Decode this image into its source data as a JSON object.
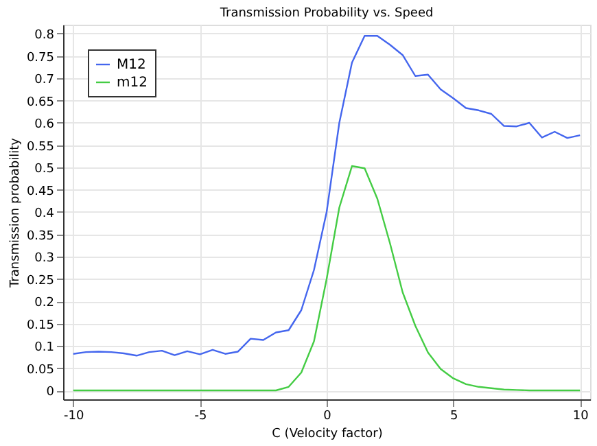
{
  "chart_data": {
    "type": "line",
    "title": "Transmission Probability vs. Speed",
    "xlabel": "C (Velocity factor)",
    "ylabel": "Transmission probability",
    "x": [
      -10,
      -9.5,
      -9,
      -8.5,
      -8,
      -7.5,
      -7,
      -6.5,
      -6,
      -5.5,
      -5,
      -4.5,
      -4,
      -3.5,
      -3,
      -2.5,
      -2,
      -1.5,
      -1,
      -0.5,
      0,
      0.5,
      1,
      1.5,
      2,
      2.5,
      3,
      3.5,
      4,
      4.5,
      5,
      5.5,
      6,
      6.5,
      7,
      7.5,
      8,
      8.5,
      9,
      9.5,
      10
    ],
    "series": [
      {
        "name": "M12",
        "color": "#4466ee",
        "values": [
          0.082,
          0.086,
          0.087,
          0.086,
          0.083,
          0.078,
          0.086,
          0.089,
          0.079,
          0.088,
          0.081,
          0.091,
          0.082,
          0.087,
          0.116,
          0.113,
          0.13,
          0.135,
          0.18,
          0.27,
          0.4,
          0.6,
          0.735,
          0.795,
          0.795,
          0.775,
          0.752,
          0.705,
          0.708,
          0.675,
          0.655,
          0.633,
          0.628,
          0.62,
          0.593,
          0.592,
          0.6,
          0.567,
          0.58,
          0.566,
          0.572
        ]
      },
      {
        "name": "m12",
        "color": "#44cc44",
        "values": [
          0,
          0,
          0,
          0,
          0,
          0,
          0,
          0,
          0,
          0,
          0,
          0,
          0,
          0,
          0,
          0,
          0,
          0.008,
          0.04,
          0.11,
          0.25,
          0.41,
          0.503,
          0.498,
          0.43,
          0.33,
          0.22,
          0.145,
          0.085,
          0.048,
          0.027,
          0.014,
          0.008,
          0.005,
          0.002,
          0.001,
          0,
          0,
          0,
          0,
          0
        ]
      }
    ],
    "xlim": [
      -10.4,
      10.4
    ],
    "xticks": [
      -10,
      -5,
      0,
      5,
      10
    ],
    "ylim": [
      -0.02,
      0.82
    ],
    "yticks": [
      0,
      0.05,
      0.1,
      0.15,
      0.2,
      0.25,
      0.3,
      0.35,
      0.4,
      0.45,
      0.5,
      0.55,
      0.6,
      0.65,
      0.7,
      0.75,
      0.8
    ],
    "grid": true,
    "legend": "top left",
    "marker": "none",
    "line_style": "solid"
  }
}
